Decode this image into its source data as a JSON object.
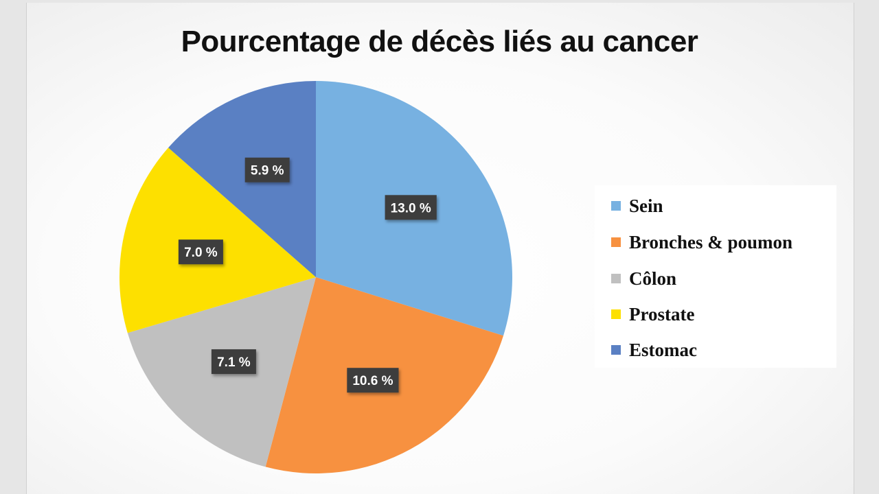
{
  "chart_data": {
    "type": "pie",
    "title": "Pourcentage de décès liés au cancer",
    "categories": [
      "Sein",
      "Bronches & poumon",
      "Côlon",
      "Prostate",
      "Estomac"
    ],
    "values": [
      13.0,
      10.6,
      7.1,
      7.0,
      5.9
    ],
    "data_labels": [
      "13.0 %",
      "10.6 %",
      "7.1 %",
      "7.0 %",
      "5.9 %"
    ],
    "colors": [
      "#77b1e1",
      "#f79140",
      "#c0c0c0",
      "#fde000",
      "#5a80c3"
    ],
    "legend_position": "right",
    "start_angle_deg": 0,
    "direction": "clockwise"
  }
}
